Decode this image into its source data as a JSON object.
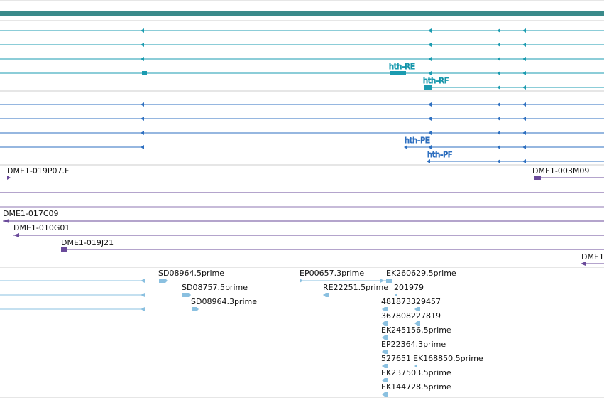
{
  "colors": {
    "header_bar": "#3a8a8a",
    "transcript_rna": "#1a9bb0",
    "transcript_protein": "#2d6fc0",
    "clone": "#6a4a9a",
    "est": "#8ac0e0",
    "separator": "#cccccc"
  },
  "tracks": {
    "transcripts_rna": [
      {
        "label": ""
      },
      {
        "label": ""
      },
      {
        "label": ""
      },
      {
        "label": "hth-RE"
      },
      {
        "label": "hth-RF"
      }
    ],
    "transcripts_protein": [
      {
        "label": ""
      },
      {
        "label": ""
      },
      {
        "label": ""
      },
      {
        "label": "hth-PE"
      },
      {
        "label": "hth-PF"
      }
    ],
    "clones_a": [
      {
        "label": "DME1-019P07.F"
      },
      {
        "label": "DME1-003M09"
      }
    ],
    "clones_b": [
      {
        "label": "DME1-017C09"
      },
      {
        "label": "DME1-010G01"
      },
      {
        "label": "DME1-019J21"
      },
      {
        "label": "DME1"
      }
    ],
    "ests": [
      {
        "label": "SD08964.5prime"
      },
      {
        "label": "SD08757.5prime"
      },
      {
        "label": "SD08964.3prime"
      },
      {
        "label": "EP00657.3prime"
      },
      {
        "label": "EK260629.5prime"
      },
      {
        "label": "RE22251.5prime"
      },
      {
        "label": "201979"
      },
      {
        "label": "481873329457"
      },
      {
        "label": "367808227819"
      },
      {
        "label": "EK245156.5prime"
      },
      {
        "label": "EP22364.3prime"
      },
      {
        "label": "527651"
      },
      {
        "label": "EK168850.5prime"
      },
      {
        "label": "EK237503.5prime"
      },
      {
        "label": "EK144728.5prime"
      }
    ]
  }
}
